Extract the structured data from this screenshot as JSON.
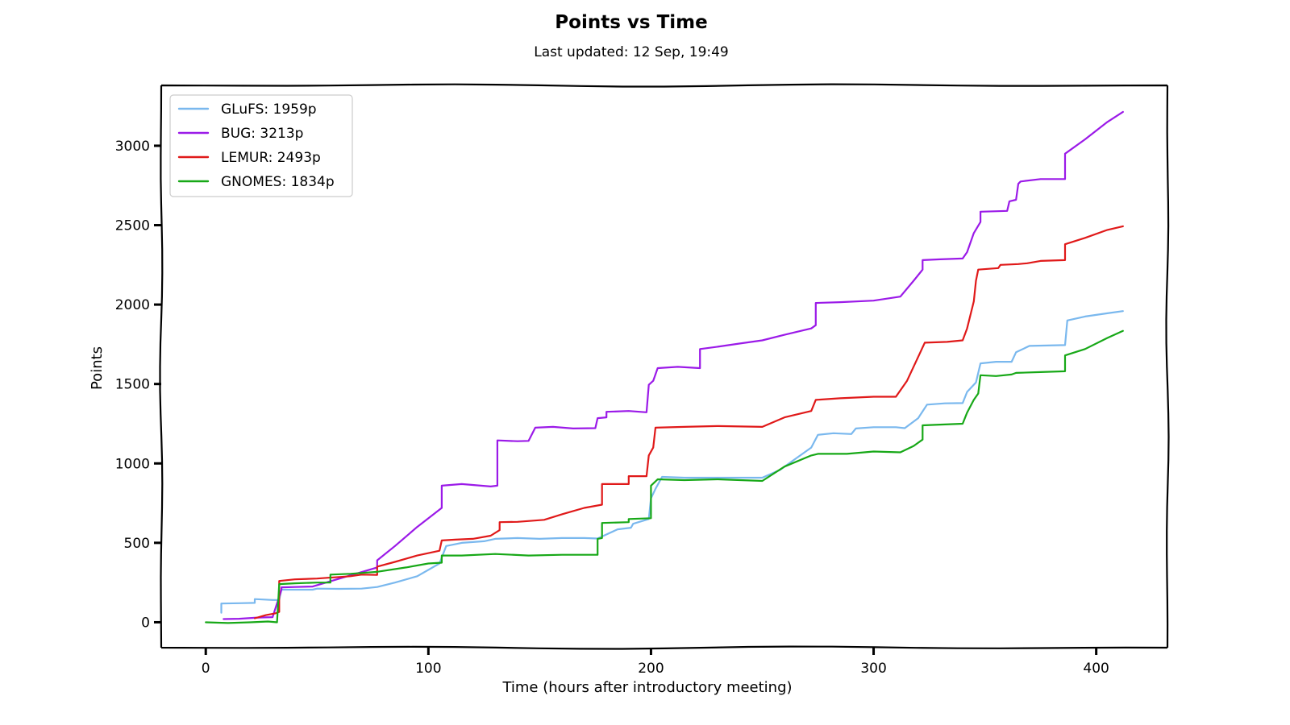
{
  "chart_data": {
    "type": "line",
    "title": "Points vs Time",
    "subtitle": "Last updated: 12 Sep, 19:49",
    "xlabel": "Time (hours after introductory meeting)",
    "ylabel": "Points",
    "xlim": [
      -20,
      432
    ],
    "ylim": [
      -160,
      3380
    ],
    "xticks": [
      0,
      100,
      200,
      300,
      400
    ],
    "yticks": [
      0,
      500,
      1000,
      1500,
      2000,
      2500,
      3000
    ],
    "grid": false,
    "legend_position": "top-left",
    "series": [
      {
        "name": "GLuFS: 1959p",
        "color": "#7ab8ee",
        "points": [
          [
            7,
            60
          ],
          [
            7,
            118
          ],
          [
            15,
            120
          ],
          [
            22,
            122
          ],
          [
            22,
            146
          ],
          [
            30,
            140
          ],
          [
            33,
            140
          ],
          [
            34,
            205
          ],
          [
            48,
            205
          ],
          [
            50,
            212
          ],
          [
            60,
            210
          ],
          [
            70,
            212
          ],
          [
            77,
            222
          ],
          [
            85,
            250
          ],
          [
            95,
            290
          ],
          [
            105,
            370
          ],
          [
            108,
            480
          ],
          [
            115,
            500
          ],
          [
            125,
            510
          ],
          [
            130,
            525
          ],
          [
            140,
            530
          ],
          [
            150,
            525
          ],
          [
            160,
            530
          ],
          [
            170,
            530
          ],
          [
            176,
            527
          ],
          [
            178,
            540
          ],
          [
            185,
            585
          ],
          [
            191,
            595
          ],
          [
            192,
            620
          ],
          [
            199,
            650
          ],
          [
            200,
            780
          ],
          [
            202,
            840
          ],
          [
            205,
            915
          ],
          [
            215,
            910
          ],
          [
            230,
            910
          ],
          [
            250,
            910
          ],
          [
            258,
            960
          ],
          [
            265,
            1030
          ],
          [
            272,
            1100
          ],
          [
            275,
            1180
          ],
          [
            282,
            1190
          ],
          [
            290,
            1185
          ],
          [
            292,
            1220
          ],
          [
            300,
            1228
          ],
          [
            310,
            1228
          ],
          [
            314,
            1222
          ],
          [
            320,
            1285
          ],
          [
            324,
            1370
          ],
          [
            332,
            1378
          ],
          [
            340,
            1380
          ],
          [
            342,
            1450
          ],
          [
            346,
            1510
          ],
          [
            348,
            1630
          ],
          [
            355,
            1640
          ],
          [
            362,
            1640
          ],
          [
            364,
            1700
          ],
          [
            370,
            1740
          ],
          [
            386,
            1745
          ],
          [
            387,
            1900
          ],
          [
            395,
            1925
          ],
          [
            405,
            1945
          ],
          [
            412,
            1959
          ]
        ]
      },
      {
        "name": "BUG: 3213p",
        "color": "#9b1ae8",
        "points": [
          [
            8,
            20
          ],
          [
            15,
            22
          ],
          [
            22,
            28
          ],
          [
            25,
            30
          ],
          [
            30,
            32
          ],
          [
            34,
            205
          ],
          [
            34,
            220
          ],
          [
            40,
            222
          ],
          [
            48,
            225
          ],
          [
            77,
            345
          ],
          [
            77,
            390
          ],
          [
            85,
            480
          ],
          [
            95,
            600
          ],
          [
            106,
            720
          ],
          [
            106,
            860
          ],
          [
            115,
            870
          ],
          [
            128,
            855
          ],
          [
            131,
            860
          ],
          [
            131,
            1145
          ],
          [
            140,
            1140
          ],
          [
            145,
            1142
          ],
          [
            148,
            1225
          ],
          [
            156,
            1230
          ],
          [
            165,
            1220
          ],
          [
            175,
            1222
          ],
          [
            176,
            1285
          ],
          [
            180,
            1290
          ],
          [
            180,
            1325
          ],
          [
            190,
            1330
          ],
          [
            198,
            1322
          ],
          [
            199,
            1495
          ],
          [
            201,
            1520
          ],
          [
            203,
            1600
          ],
          [
            212,
            1608
          ],
          [
            222,
            1600
          ],
          [
            222,
            1720
          ],
          [
            230,
            1735
          ],
          [
            240,
            1755
          ],
          [
            250,
            1775
          ],
          [
            260,
            1810
          ],
          [
            272,
            1850
          ],
          [
            274,
            1870
          ],
          [
            274,
            2010
          ],
          [
            285,
            2015
          ],
          [
            300,
            2025
          ],
          [
            312,
            2050
          ],
          [
            318,
            2150
          ],
          [
            322,
            2220
          ],
          [
            322,
            2280
          ],
          [
            330,
            2285
          ],
          [
            340,
            2290
          ],
          [
            342,
            2330
          ],
          [
            345,
            2450
          ],
          [
            348,
            2520
          ],
          [
            348,
            2585
          ],
          [
            360,
            2590
          ],
          [
            361,
            2650
          ],
          [
            364,
            2660
          ],
          [
            365,
            2760
          ],
          [
            366,
            2775
          ],
          [
            375,
            2790
          ],
          [
            386,
            2790
          ],
          [
            386,
            2950
          ],
          [
            395,
            3040
          ],
          [
            405,
            3150
          ],
          [
            412,
            3213
          ]
        ]
      },
      {
        "name": "LEMUR: 2493p",
        "color": "#e01919",
        "points": [
          [
            22,
            25
          ],
          [
            27,
            45
          ],
          [
            31,
            55
          ],
          [
            33,
            65
          ],
          [
            33,
            260
          ],
          [
            40,
            270
          ],
          [
            50,
            275
          ],
          [
            55,
            280
          ],
          [
            60,
            285
          ],
          [
            65,
            290
          ],
          [
            70,
            300
          ],
          [
            77,
            298
          ],
          [
            77,
            350
          ],
          [
            85,
            380
          ],
          [
            95,
            420
          ],
          [
            105,
            450
          ],
          [
            106,
            515
          ],
          [
            112,
            520
          ],
          [
            120,
            525
          ],
          [
            128,
            545
          ],
          [
            132,
            580
          ],
          [
            132,
            630
          ],
          [
            140,
            632
          ],
          [
            152,
            645
          ],
          [
            160,
            680
          ],
          [
            170,
            720
          ],
          [
            178,
            740
          ],
          [
            178,
            870
          ],
          [
            185,
            870
          ],
          [
            190,
            870
          ],
          [
            190,
            920
          ],
          [
            198,
            920
          ],
          [
            199,
            1050
          ],
          [
            201,
            1100
          ],
          [
            202,
            1225
          ],
          [
            215,
            1230
          ],
          [
            230,
            1235
          ],
          [
            250,
            1230
          ],
          [
            260,
            1290
          ],
          [
            272,
            1330
          ],
          [
            274,
            1400
          ],
          [
            285,
            1410
          ],
          [
            300,
            1420
          ],
          [
            310,
            1420
          ],
          [
            315,
            1520
          ],
          [
            321,
            1700
          ],
          [
            323,
            1760
          ],
          [
            333,
            1765
          ],
          [
            340,
            1775
          ],
          [
            342,
            1850
          ],
          [
            345,
            2020
          ],
          [
            346,
            2150
          ],
          [
            347,
            2220
          ],
          [
            356,
            2230
          ],
          [
            357,
            2250
          ],
          [
            365,
            2255
          ],
          [
            369,
            2260
          ],
          [
            375,
            2275
          ],
          [
            386,
            2280
          ],
          [
            386,
            2380
          ],
          [
            395,
            2420
          ],
          [
            405,
            2470
          ],
          [
            412,
            2493
          ]
        ]
      },
      {
        "name": "GNOMES: 1834p",
        "color": "#17a817",
        "points": [
          [
            0,
            0
          ],
          [
            10,
            -5
          ],
          [
            20,
            0
          ],
          [
            28,
            5
          ],
          [
            32,
            0
          ],
          [
            33,
            240
          ],
          [
            40,
            245
          ],
          [
            50,
            250
          ],
          [
            56,
            250
          ],
          [
            56,
            300
          ],
          [
            65,
            305
          ],
          [
            77,
            318
          ],
          [
            90,
            345
          ],
          [
            100,
            370
          ],
          [
            106,
            375
          ],
          [
            106,
            420
          ],
          [
            115,
            420
          ],
          [
            130,
            430
          ],
          [
            145,
            420
          ],
          [
            160,
            425
          ],
          [
            176,
            425
          ],
          [
            176,
            525
          ],
          [
            178,
            530
          ],
          [
            178,
            625
          ],
          [
            190,
            630
          ],
          [
            190,
            650
          ],
          [
            200,
            655
          ],
          [
            200,
            860
          ],
          [
            203,
            900
          ],
          [
            215,
            895
          ],
          [
            230,
            900
          ],
          [
            250,
            890
          ],
          [
            260,
            980
          ],
          [
            272,
            1050
          ],
          [
            275,
            1060
          ],
          [
            288,
            1060
          ],
          [
            300,
            1075
          ],
          [
            312,
            1070
          ],
          [
            318,
            1110
          ],
          [
            322,
            1150
          ],
          [
            322,
            1240
          ],
          [
            340,
            1250
          ],
          [
            342,
            1320
          ],
          [
            345,
            1400
          ],
          [
            347,
            1440
          ],
          [
            348,
            1555
          ],
          [
            355,
            1550
          ],
          [
            362,
            1560
          ],
          [
            364,
            1570
          ],
          [
            375,
            1575
          ],
          [
            386,
            1580
          ],
          [
            386,
            1680
          ],
          [
            395,
            1720
          ],
          [
            405,
            1790
          ],
          [
            412,
            1834
          ]
        ]
      }
    ]
  }
}
